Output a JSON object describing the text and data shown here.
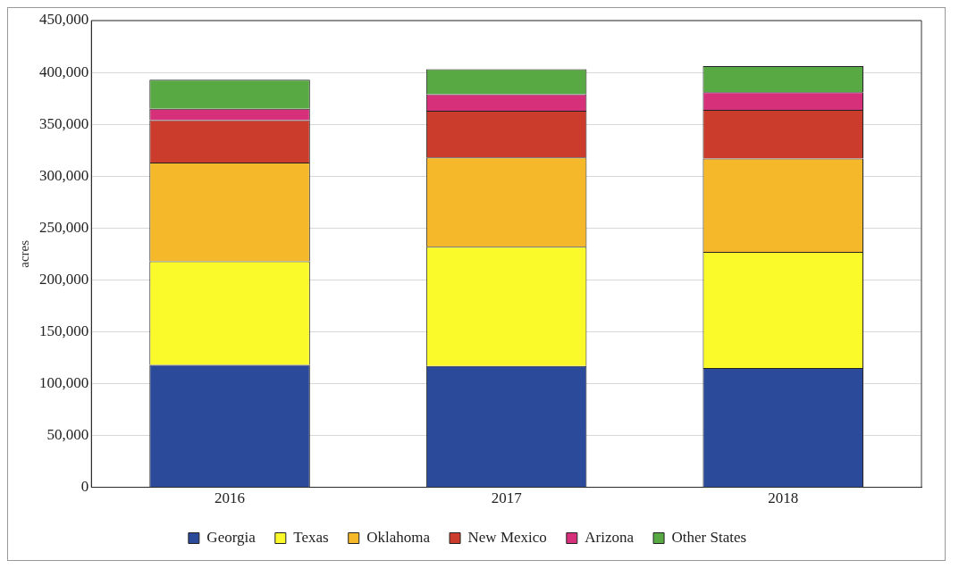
{
  "chart_data": {
    "type": "bar",
    "stacked": true,
    "ylabel": "acres",
    "categories": [
      "2016",
      "2017",
      "2018"
    ],
    "series": [
      {
        "name": "Georgia",
        "color": "#2b4a9a",
        "values": [
          118000,
          117000,
          115000
        ]
      },
      {
        "name": "Texas",
        "color": "#fafa2a",
        "values": [
          100000,
          115000,
          112000
        ]
      },
      {
        "name": "Oklahoma",
        "color": "#f5b82a",
        "values": [
          95000,
          86000,
          90000
        ]
      },
      {
        "name": "New Mexico",
        "color": "#cc3c2c",
        "values": [
          41000,
          45000,
          47000
        ]
      },
      {
        "name": "Arizona",
        "color": "#d6307a",
        "values": [
          11000,
          16000,
          17000
        ]
      },
      {
        "name": "Other States",
        "color": "#58a843",
        "values": [
          28000,
          24000,
          25000
        ]
      }
    ],
    "ylim": [
      0,
      450000
    ],
    "yticks": [
      {
        "value": 0,
        "label": "0"
      },
      {
        "value": 50000,
        "label": "50,000"
      },
      {
        "value": 100000,
        "label": "100,000"
      },
      {
        "value": 150000,
        "label": "150,000"
      },
      {
        "value": 200000,
        "label": "200,000"
      },
      {
        "value": 250000,
        "label": "250,000"
      },
      {
        "value": 300000,
        "label": "300,000"
      },
      {
        "value": 350000,
        "label": "350,000"
      },
      {
        "value": 400000,
        "label": "400,000"
      },
      {
        "value": 450000,
        "label": "450,000"
      }
    ],
    "grid": "y",
    "legend": "bottom"
  }
}
